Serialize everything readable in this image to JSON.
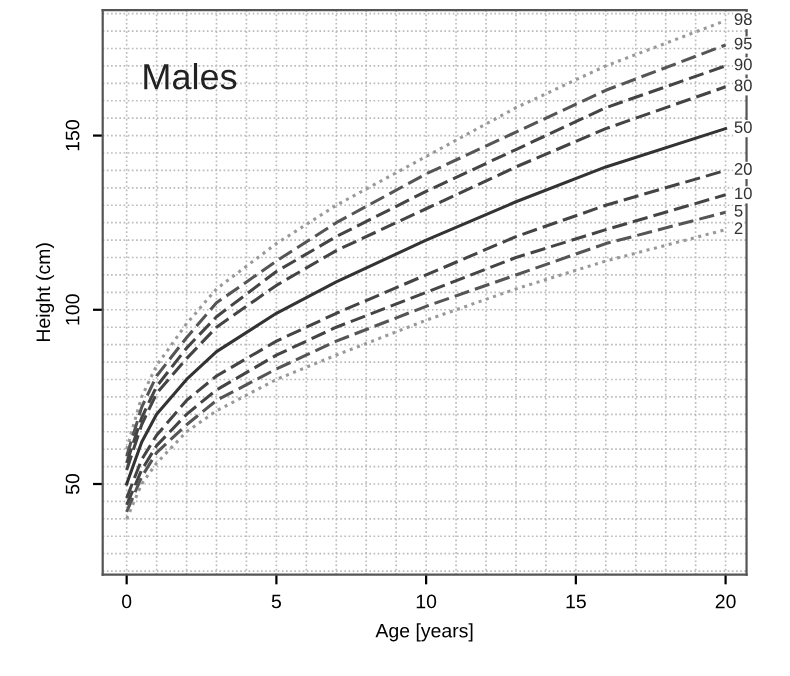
{
  "chart_data": {
    "type": "line",
    "title": "Males",
    "xlabel": "Age [years]",
    "ylabel": "Height (cm)",
    "x": [
      0,
      0.5,
      1,
      2,
      3,
      5,
      7,
      10,
      13,
      16,
      20
    ],
    "xlim": [
      -0.8,
      20.7
    ],
    "ylim": [
      24,
      186
    ],
    "xticks": [
      0,
      5,
      10,
      15,
      20
    ],
    "yticks": [
      50,
      100,
      150
    ],
    "grid": true,
    "legend": false,
    "series": [
      {
        "name": "98",
        "color": "#999999",
        "line_style": "dotted",
        "values": [
          60,
          75,
          84,
          96,
          106,
          119,
          130,
          144,
          158,
          170,
          183
        ]
      },
      {
        "name": "95",
        "color": "#555555",
        "line_style": "dashed",
        "values": [
          58,
          72,
          81,
          92,
          102,
          114,
          125,
          139,
          151,
          163,
          176
        ]
      },
      {
        "name": "90",
        "color": "#444444",
        "line_style": "dashed",
        "values": [
          56,
          69,
          78,
          89,
          98,
          111,
          121,
          134,
          146,
          158,
          170
        ]
      },
      {
        "name": "80",
        "color": "#444444",
        "line_style": "dashed",
        "values": [
          54,
          67,
          76,
          86,
          95,
          107,
          117,
          129,
          141,
          152,
          164
        ]
      },
      {
        "name": "50",
        "color": "#333333",
        "line_style": "solid",
        "values": [
          50,
          62,
          70,
          80,
          88,
          99,
          108,
          120,
          131,
          141,
          152
        ]
      },
      {
        "name": "20",
        "color": "#444444",
        "line_style": "dashed",
        "values": [
          46,
          57,
          64,
          74,
          81,
          91,
          99,
          110,
          121,
          130,
          140
        ]
      },
      {
        "name": "10",
        "color": "#444444",
        "line_style": "dashed",
        "values": [
          44,
          54,
          61,
          70,
          77,
          87,
          95,
          105,
          115,
          123,
          133
        ]
      },
      {
        "name": "5",
        "color": "#555555",
        "line_style": "dashed",
        "values": [
          42,
          52,
          59,
          67,
          74,
          83,
          91,
          101,
          110,
          119,
          128
        ]
      },
      {
        "name": "2",
        "color": "#999999",
        "line_style": "dotted",
        "values": [
          40,
          50,
          56,
          65,
          71,
          80,
          87,
          97,
          106,
          114,
          123
        ]
      }
    ]
  }
}
